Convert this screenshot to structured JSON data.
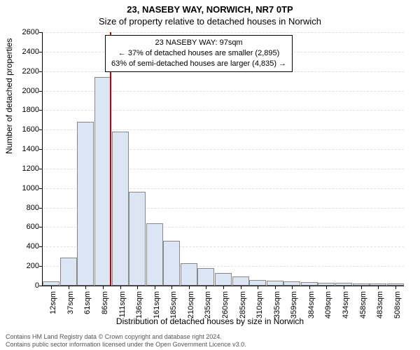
{
  "title_line1": "23, NASEBY WAY, NORWICH, NR7 0TP",
  "title_line2": "Size of property relative to detached houses in Norwich",
  "ylabel": "Number of detached properties",
  "xlabel": "Distribution of detached houses by size in Norwich",
  "annotation": {
    "line1": "23 NASEBY WAY: 97sqm",
    "line2": "← 37% of detached houses are smaller (2,895)",
    "line3": "63% of semi-detached houses are larger (4,835) →"
  },
  "chart": {
    "type": "histogram",
    "ylim": [
      0,
      2600
    ],
    "ytick_step": 200,
    "bar_color": "#dbe5f4",
    "bar_border": "#888888",
    "grid_color": "#e0e0e0",
    "marker_color": "#c00000",
    "marker_x_index": 3.4,
    "background_color": "#ffffff",
    "categories": [
      "12sqm",
      "37sqm",
      "61sqm",
      "86sqm",
      "111sqm",
      "136sqm",
      "161sqm",
      "185sqm",
      "210sqm",
      "235sqm",
      "260sqm",
      "285sqm",
      "310sqm",
      "335sqm",
      "359sqm",
      "384sqm",
      "409sqm",
      "434sqm",
      "458sqm",
      "483sqm",
      "508sqm"
    ],
    "values": [
      40,
      290,
      1680,
      2140,
      1580,
      960,
      640,
      460,
      230,
      180,
      130,
      90,
      60,
      50,
      40,
      35,
      30,
      28,
      25,
      22,
      20
    ]
  },
  "footer": {
    "line1": "Contains HM Land Registry data © Crown copyright and database right 2024.",
    "line2": "Contains public sector information licensed under the Open Government Licence v3.0."
  }
}
